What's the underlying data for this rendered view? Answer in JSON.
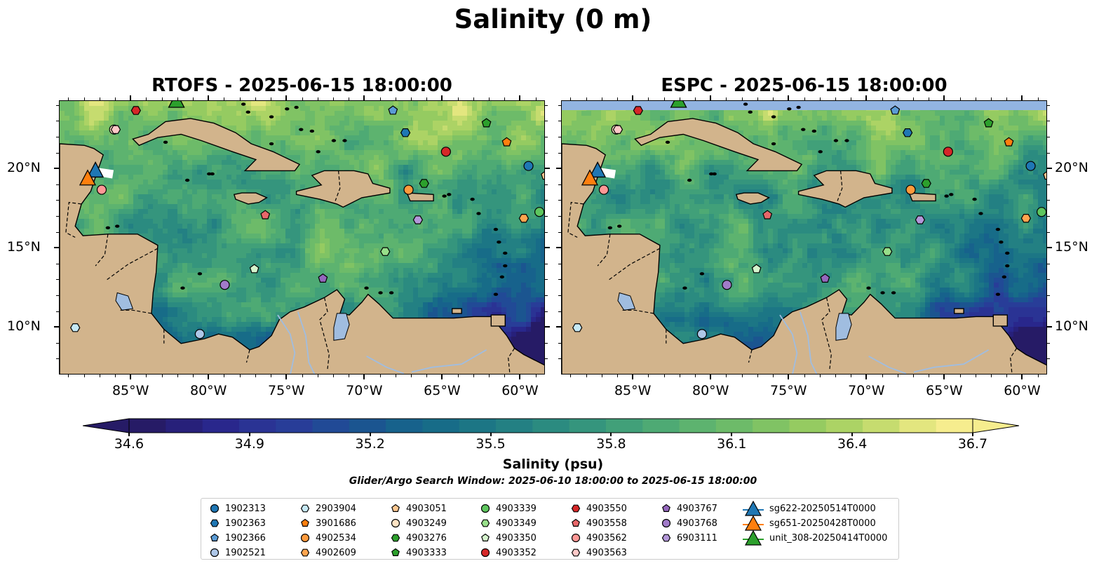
{
  "suptitle": "Salinity (0 m)",
  "panels": [
    {
      "title": "RTOFS - 2025-06-15 18:00:00",
      "model": "RTOFS"
    },
    {
      "title": "ESPC - 2025-06-15 18:00:00",
      "model": "ESPC"
    }
  ],
  "map_extent": {
    "lon_min": -89.6,
    "lon_max": -58.4,
    "lat_min": 7.0,
    "lat_max": 24.3
  },
  "lon_ticks": [
    {
      "value": -85,
      "label": "85°W"
    },
    {
      "value": -80,
      "label": "80°W"
    },
    {
      "value": -75,
      "label": "75°W"
    },
    {
      "value": -70,
      "label": "70°W"
    },
    {
      "value": -65,
      "label": "65°W"
    },
    {
      "value": -60,
      "label": "60°W"
    }
  ],
  "lat_ticks": [
    {
      "value": 20,
      "label": "20°N"
    },
    {
      "value": 15,
      "label": "15°N"
    },
    {
      "value": 10,
      "label": "10°N"
    }
  ],
  "colorbar": {
    "label": "Salinity (psu)",
    "min": 34.6,
    "max": 36.7,
    "ticks": [
      "34.6",
      "34.9",
      "35.2",
      "35.5",
      "35.8",
      "36.1",
      "36.4",
      "36.7"
    ],
    "colors": [
      "#261b66",
      "#27207a",
      "#29278c",
      "#2a3394",
      "#283d98",
      "#214a96",
      "#1b5590",
      "#17628c",
      "#176c88",
      "#1c7685",
      "#238083",
      "#2b8b80",
      "#35957d",
      "#41a079",
      "#4eaa74",
      "#5db36f",
      "#6dbb69",
      "#80c364",
      "#95cb61",
      "#acd365",
      "#c6dc6f",
      "#e3e67f",
      "#f6ed8e"
    ]
  },
  "search_window": "Glider/Argo Search Window: 2025-06-10 18:00:00 to 2025-06-15 18:00:00",
  "land_color": "#d2b48c",
  "lake_color": "#a0bde0",
  "floats": [
    {
      "id": "1902313",
      "marker": "circle",
      "color": "#1f77b4",
      "lon": -59.5,
      "lat": 20.2
    },
    {
      "id": "1902363",
      "marker": "hexagon",
      "color": "#1f77b4",
      "lon": -67.4,
      "lat": 22.3
    },
    {
      "id": "1902366",
      "marker": "pentagon",
      "color": "#5a9bd5",
      "lon": -68.2,
      "lat": 23.7
    },
    {
      "id": "1902521",
      "marker": "circle",
      "color": "#aec7e8",
      "lon": -80.6,
      "lat": 9.6
    },
    {
      "id": "2903904",
      "marker": "hexagon",
      "color": "#c6e9f5",
      "lon": -88.6,
      "lat": 10.0
    },
    {
      "id": "3901686",
      "marker": "pentagon",
      "color": "#ff7f0e",
      "lon": -60.9,
      "lat": 21.7
    },
    {
      "id": "4902534",
      "marker": "circle",
      "color": "#ff9a3c",
      "lon": -67.2,
      "lat": 18.7
    },
    {
      "id": "4902609",
      "marker": "hexagon",
      "color": "#ffa54f",
      "lon": -59.8,
      "lat": 16.9
    },
    {
      "id": "4903051",
      "marker": "pentagon",
      "color": "#ffc891",
      "lon": -58.4,
      "lat": 19.6
    },
    {
      "id": "4903249",
      "marker": "circle",
      "color": "#ffe3c4",
      "lon": -86.1,
      "lat": 22.5
    },
    {
      "id": "4903276",
      "marker": "hexagon",
      "color": "#2ca02c",
      "lon": -66.2,
      "lat": 19.1
    },
    {
      "id": "4903333",
      "marker": "pentagon",
      "color": "#2ca02c",
      "lon": -62.2,
      "lat": 22.9
    },
    {
      "id": "4903339",
      "marker": "circle",
      "color": "#5ec65e",
      "lon": -58.8,
      "lat": 17.3
    },
    {
      "id": "4903349",
      "marker": "hexagon",
      "color": "#98df8a",
      "lon": -68.7,
      "lat": 14.8
    },
    {
      "id": "4903350",
      "marker": "pentagon",
      "color": "#d5f5cd",
      "lon": -77.1,
      "lat": 13.7
    },
    {
      "id": "4903352",
      "marker": "circle",
      "color": "#d62728",
      "lon": -64.8,
      "lat": 21.1
    },
    {
      "id": "4903550",
      "marker": "hexagon",
      "color": "#d62728",
      "lon": -84.7,
      "lat": 23.7
    },
    {
      "id": "4903558",
      "marker": "pentagon",
      "color": "#e8676a",
      "lon": -76.4,
      "lat": 17.1
    },
    {
      "id": "4903562",
      "marker": "circle",
      "color": "#ff9896",
      "lon": -86.9,
      "lat": 18.7
    },
    {
      "id": "4903563",
      "marker": "hexagon",
      "color": "#ffc9c8",
      "lon": -86.0,
      "lat": 22.5
    },
    {
      "id": "4903767",
      "marker": "pentagon",
      "color": "#9467bd",
      "lon": -72.7,
      "lat": 13.1
    },
    {
      "id": "4903768",
      "marker": "circle",
      "color": "#a17bc9",
      "lon": -79.0,
      "lat": 12.7
    },
    {
      "id": "6903111",
      "marker": "hexagon",
      "color": "#b397d9",
      "lon": -66.6,
      "lat": 16.8
    }
  ],
  "gliders": [
    {
      "id": "sg622-20250514T0000",
      "color": "#1f77b4",
      "lon": -87.3,
      "lat": 19.9
    },
    {
      "id": "sg651-20250428T0000",
      "color": "#ff7f0e",
      "lon": -87.8,
      "lat": 19.4
    },
    {
      "id": "unit_308-20250414T0000",
      "color": "#2ca02c",
      "lon": -82.1,
      "lat": 24.3
    }
  ]
}
